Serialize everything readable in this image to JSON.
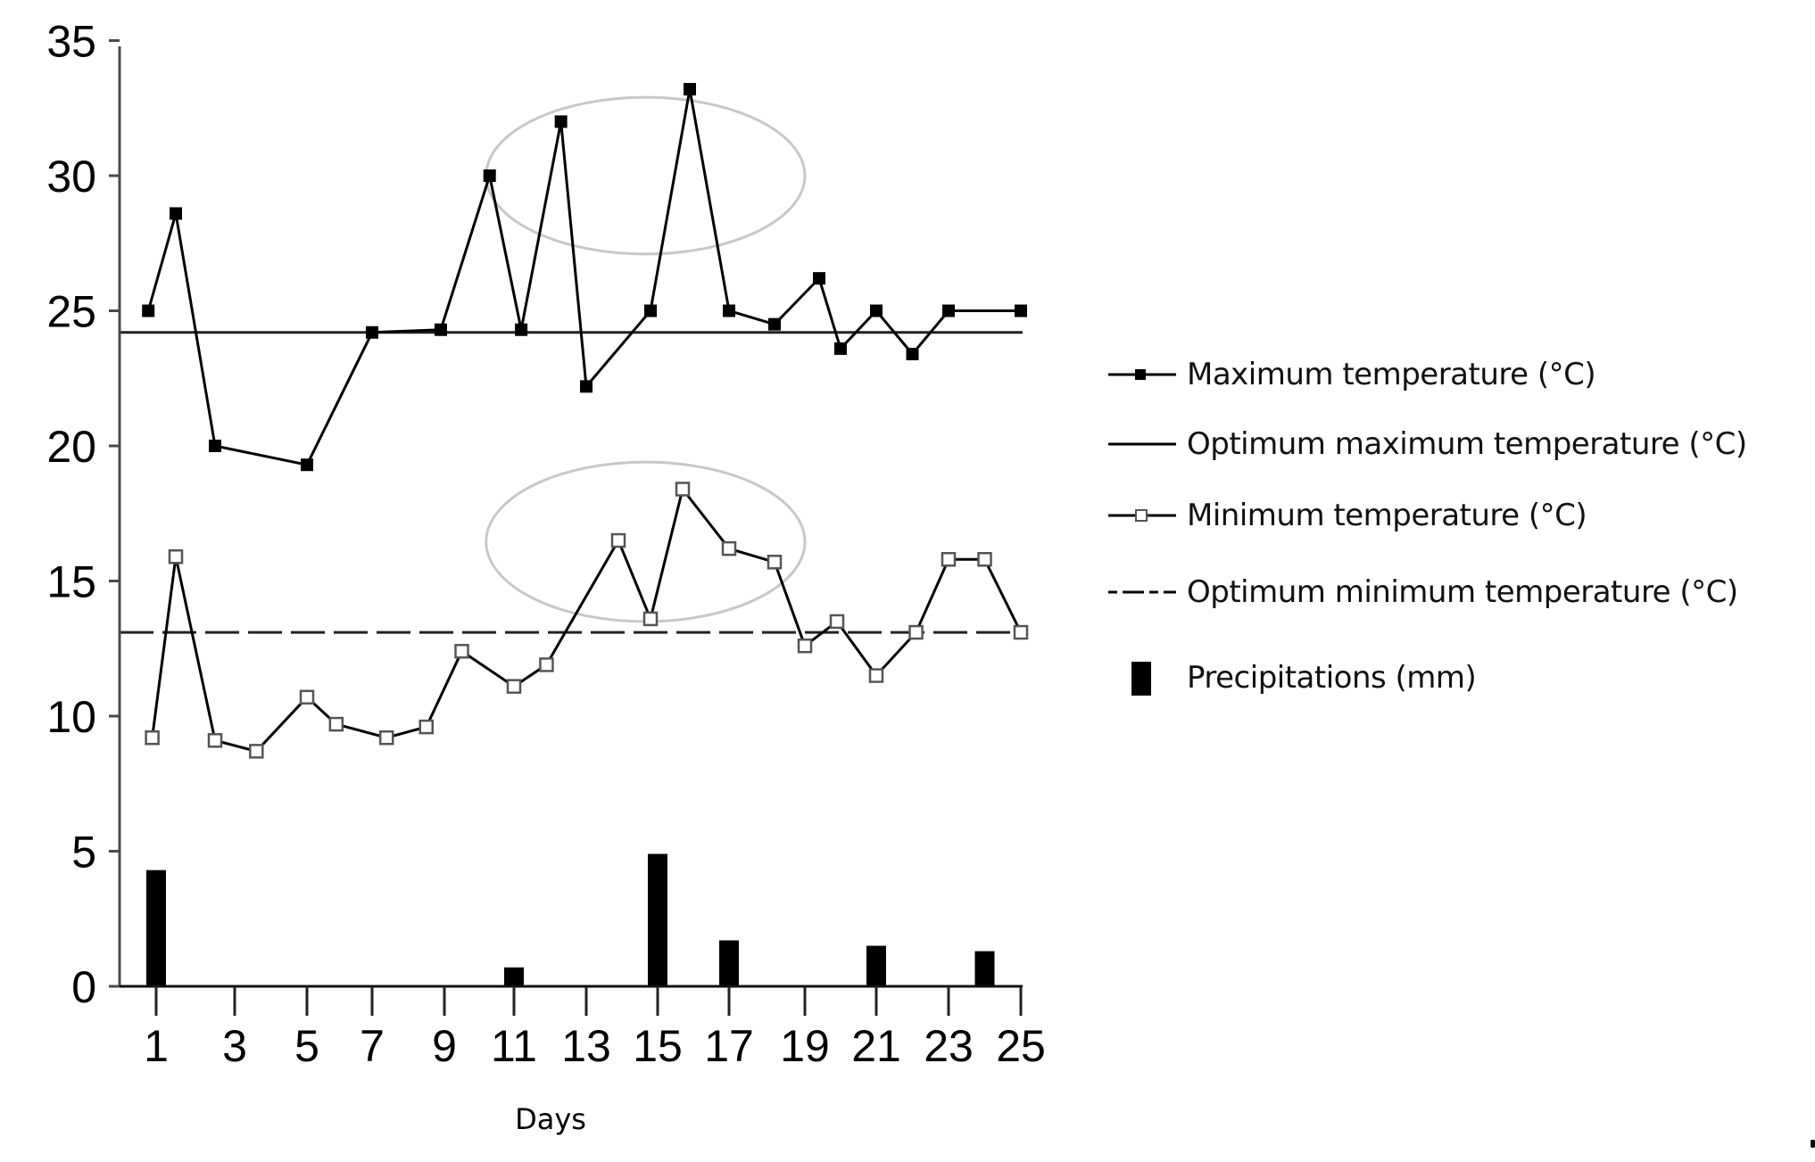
{
  "chart_data": {
    "type": "line",
    "title": "",
    "xlabel": "Days",
    "ylabel": "",
    "ylim": [
      0,
      35
    ],
    "yticks": [
      "0",
      "5",
      "10",
      "15",
      "20",
      "25",
      "30",
      "35"
    ],
    "xticks": [
      "1",
      "3",
      "5",
      "7",
      "9",
      "11",
      "13",
      "15",
      "17",
      "19",
      "21",
      "23",
      "25"
    ],
    "grid": false,
    "legend_position": "right",
    "series": [
      {
        "name": "Maximum temperature (°C)",
        "type": "line",
        "marker": "filled-square",
        "points": [
          {
            "day": 0.8,
            "value": 25.0
          },
          {
            "day": 1.5,
            "value": 28.6
          },
          {
            "day": 2.5,
            "value": 20.0
          },
          {
            "day": 5.0,
            "value": 19.3
          },
          {
            "day": 7.0,
            "value": 24.2
          },
          {
            "day": 8.9,
            "value": 24.3
          },
          {
            "day": 10.3,
            "value": 30.0
          },
          {
            "day": 11.2,
            "value": 24.3
          },
          {
            "day": 12.3,
            "value": 32.0
          },
          {
            "day": 13.0,
            "value": 22.2
          },
          {
            "day": 14.8,
            "value": 25.0
          },
          {
            "day": 15.9,
            "value": 33.2
          },
          {
            "day": 17.0,
            "value": 25.0
          },
          {
            "day": 18.2,
            "value": 24.5
          },
          {
            "day": 19.4,
            "value": 26.2
          },
          {
            "day": 20.0,
            "value": 23.6
          },
          {
            "day": 21.0,
            "value": 25.0
          },
          {
            "day": 22.0,
            "value": 23.4
          },
          {
            "day": 23.0,
            "value": 25.0
          },
          {
            "day": 25.0,
            "value": 25.0
          }
        ]
      },
      {
        "name": "Optimum maximum temperature (°C)",
        "type": "hline",
        "value": 24.2
      },
      {
        "name": "Minimum temperature (°C)",
        "type": "line",
        "marker": "open-square",
        "points": [
          {
            "day": 0.9,
            "value": 9.2
          },
          {
            "day": 1.5,
            "value": 15.9
          },
          {
            "day": 2.5,
            "value": 9.1
          },
          {
            "day": 3.6,
            "value": 8.7
          },
          {
            "day": 5.0,
            "value": 10.7
          },
          {
            "day": 5.9,
            "value": 9.7
          },
          {
            "day": 7.4,
            "value": 9.2
          },
          {
            "day": 8.5,
            "value": 9.6
          },
          {
            "day": 9.5,
            "value": 12.4
          },
          {
            "day": 11.0,
            "value": 11.1
          },
          {
            "day": 11.9,
            "value": 11.9
          },
          {
            "day": 13.9,
            "value": 16.5
          },
          {
            "day": 14.8,
            "value": 13.6
          },
          {
            "day": 15.7,
            "value": 18.4
          },
          {
            "day": 17.0,
            "value": 16.2
          },
          {
            "day": 18.2,
            "value": 15.7
          },
          {
            "day": 19.0,
            "value": 12.6
          },
          {
            "day": 19.9,
            "value": 13.5
          },
          {
            "day": 21.0,
            "value": 11.5
          },
          {
            "day": 22.1,
            "value": 13.1
          },
          {
            "day": 23.0,
            "value": 15.8
          },
          {
            "day": 24.0,
            "value": 15.8
          },
          {
            "day": 25.0,
            "value": 13.1
          }
        ]
      },
      {
        "name": "Optimum minimum temperature (°C)",
        "type": "hline-dashed",
        "value": 13.1
      },
      {
        "name": "Precipitations (mm)",
        "type": "bar",
        "points": [
          {
            "day": 1,
            "value": 4.3
          },
          {
            "day": 11,
            "value": 0.7
          },
          {
            "day": 15,
            "value": 4.9
          },
          {
            "day": 17,
            "value": 1.7
          },
          {
            "day": 21,
            "value": 1.5
          },
          {
            "day": 24,
            "value": 1.3
          }
        ]
      }
    ],
    "annotations": [
      {
        "type": "ellipse",
        "note": "highlight of maximum temperature peaks",
        "day_range": [
          10.2,
          19.0
        ],
        "value_range": [
          27.1,
          32.9
        ]
      },
      {
        "type": "ellipse",
        "note": "highlight of minimum temperature peaks",
        "day_range": [
          10.2,
          19.0
        ],
        "value_range": [
          13.5,
          19.4
        ]
      }
    ]
  },
  "legend": {
    "items": [
      {
        "label": "Maximum temperature (°C)",
        "symbol": "line-filled-square"
      },
      {
        "label": "Optimum maximum temperature (°C)",
        "symbol": "solid-line"
      },
      {
        "label": "Minimum temperature (°C)",
        "symbol": "line-open-square"
      },
      {
        "label": "Optimum minimum temperature (°C)",
        "symbol": "dashed-line"
      },
      {
        "label": "Precipitations (mm)",
        "symbol": "black-bar"
      }
    ]
  },
  "colors": {
    "series": "#000000",
    "axis": "#4a4a4a",
    "ellipse": "#c8c8c8",
    "background": "#ffffff"
  }
}
